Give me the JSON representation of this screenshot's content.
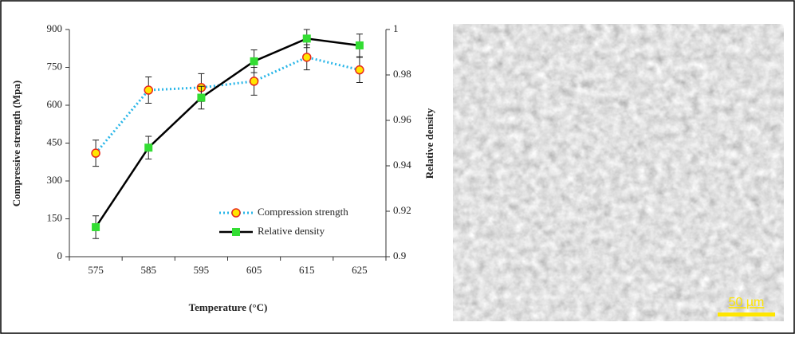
{
  "chart_data": {
    "type": "line",
    "x_label": "Temperature (°C)",
    "y_label": "Compressive strength (Mpa)",
    "y2_label": "Relative density",
    "categories": [
      "575",
      "585",
      "595",
      "605",
      "615",
      "625"
    ],
    "series": [
      {
        "name": "Compression strength",
        "color": "#29b6e8",
        "marker_color": "#e8281c",
        "marker_fill": "#ffe600",
        "values": [
          410,
          660,
          670,
          695,
          790,
          740
        ],
        "errors": [
          52,
          52,
          55,
          55,
          50,
          50
        ]
      },
      {
        "name": "Relative density",
        "axis": "y2",
        "color": "#000000",
        "marker_color": "#33dd33",
        "values": [
          0.913,
          0.948,
          0.97,
          0.986,
          0.996,
          0.993
        ],
        "errors": [
          0.005,
          0.005,
          0.005,
          0.005,
          0.004,
          0.005
        ]
      }
    ],
    "ylim": [
      0,
      900
    ],
    "yticks": [
      0,
      150,
      300,
      450,
      600,
      750,
      900
    ],
    "y2lim": [
      0.9,
      1
    ],
    "y2ticks": [
      0.9,
      0.92,
      0.94,
      0.96,
      0.98,
      1
    ],
    "legend": "lower-right",
    "scale_bar_label": "50 µm"
  }
}
